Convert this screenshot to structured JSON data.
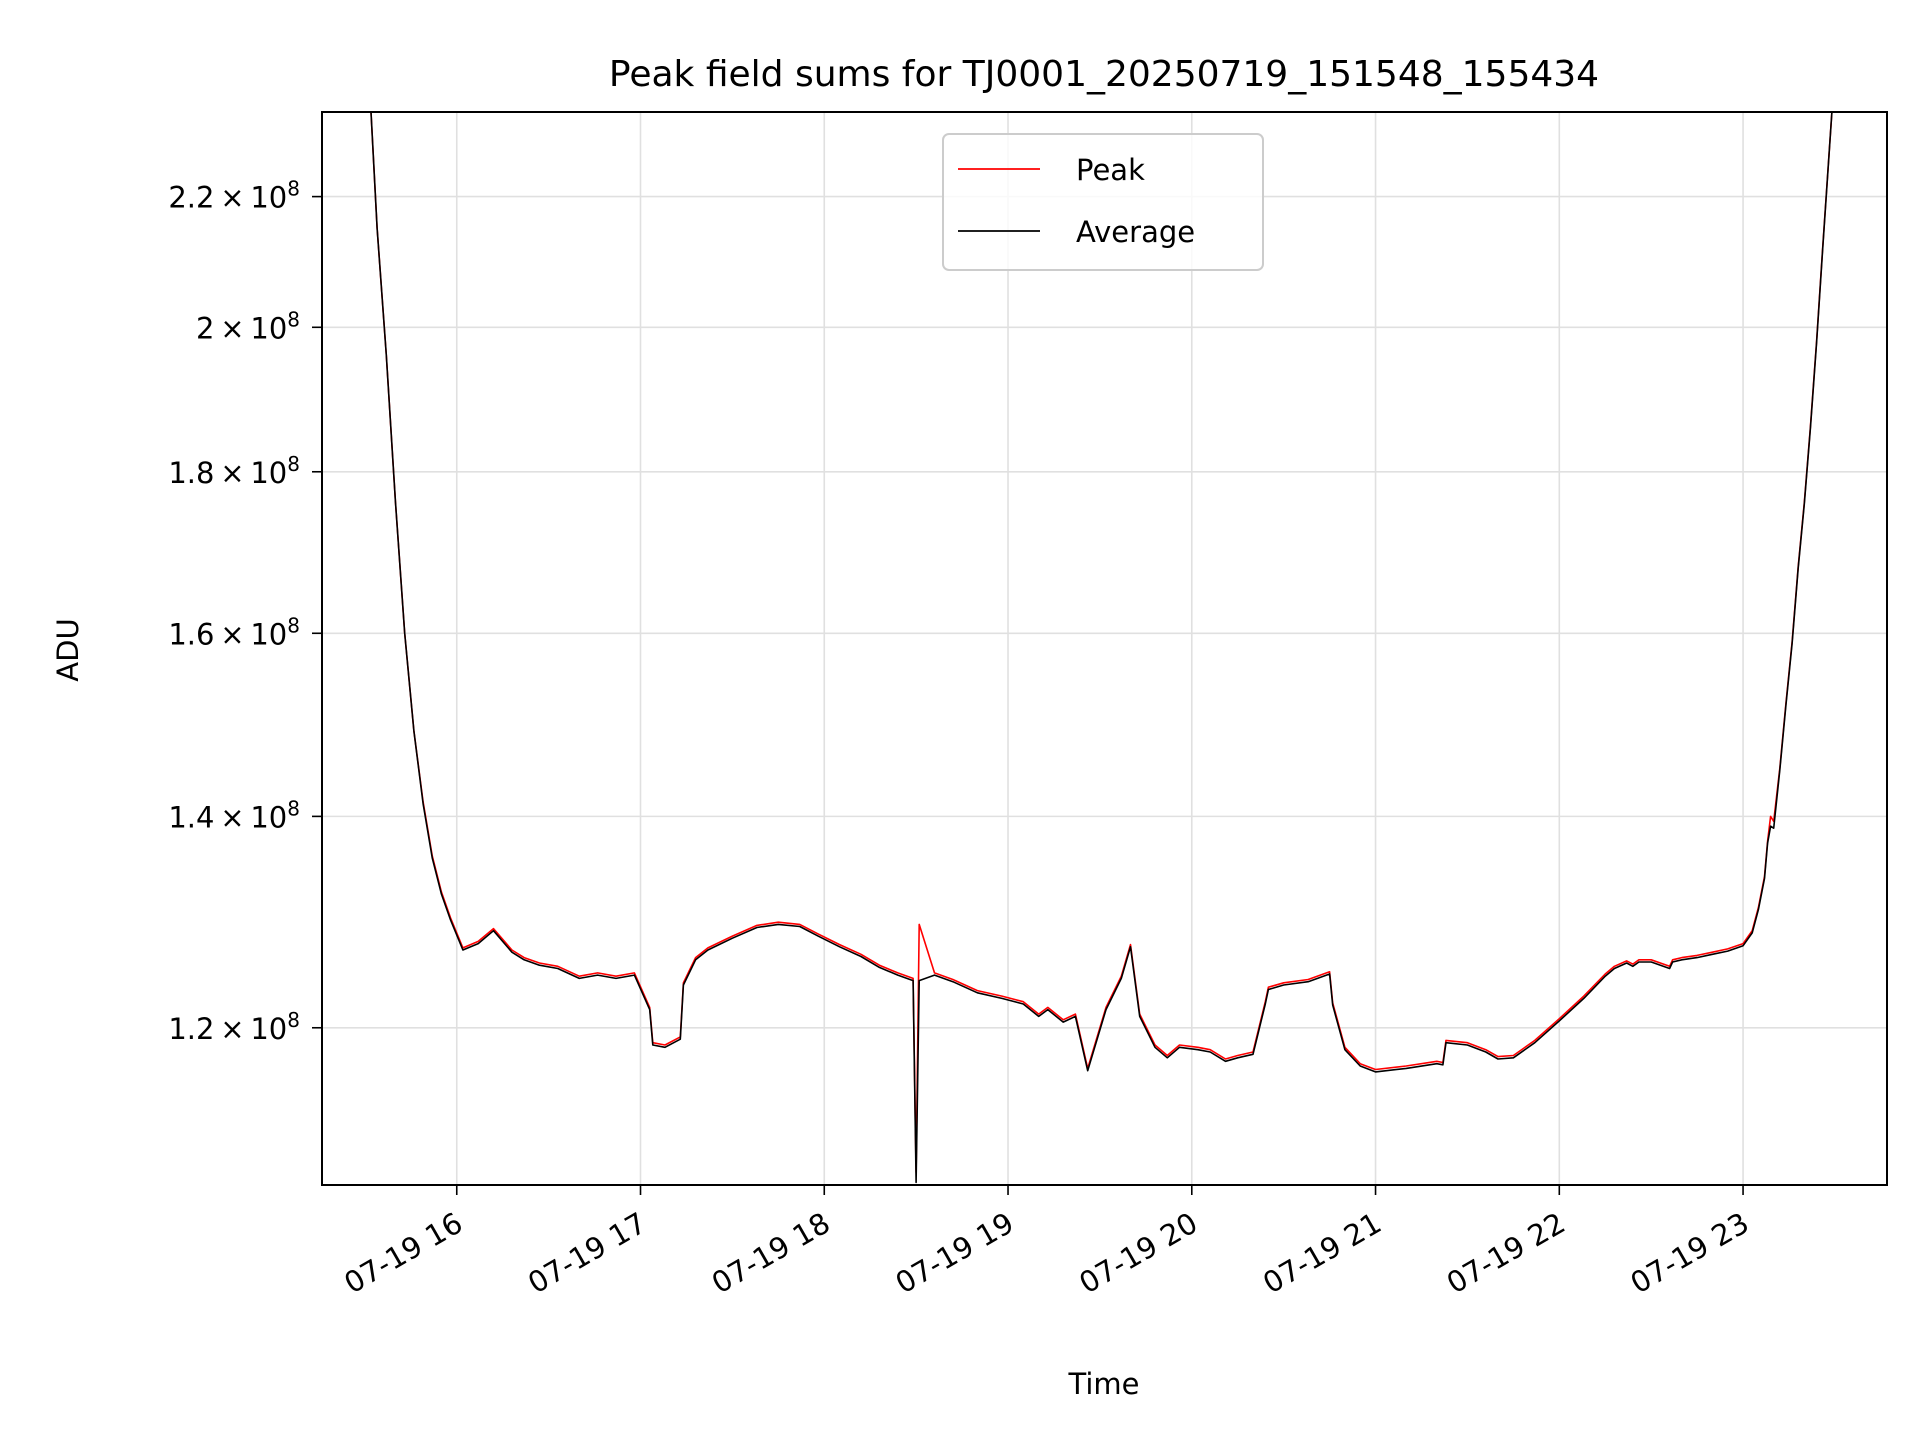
{
  "chart_data": {
    "type": "line",
    "title": "Peak field sums for TJ0001_20250719_151548_155434",
    "xlabel": "Time",
    "ylabel": "ADU",
    "x_scale": "time",
    "y_scale": "log",
    "xlim": [
      "2025-07-19T15:16:00",
      "2025-07-19T23:47:00"
    ],
    "ylim": [
      107000000,
      234000000
    ],
    "x_ticks": [
      {
        "value": "2025-07-19T16:00:00",
        "label": "07-19 16"
      },
      {
        "value": "2025-07-19T17:00:00",
        "label": "07-19 17"
      },
      {
        "value": "2025-07-19T18:00:00",
        "label": "07-19 18"
      },
      {
        "value": "2025-07-19T19:00:00",
        "label": "07-19 19"
      },
      {
        "value": "2025-07-19T20:00:00",
        "label": "07-19 20"
      },
      {
        "value": "2025-07-19T21:00:00",
        "label": "07-19 21"
      },
      {
        "value": "2025-07-19T22:00:00",
        "label": "07-19 22"
      },
      {
        "value": "2025-07-19T23:00:00",
        "label": "07-19 23"
      }
    ],
    "y_ticks": [
      {
        "value": 120000000,
        "mantissa": "1.2",
        "base": "10",
        "exp": "8"
      },
      {
        "value": 140000000,
        "mantissa": "1.4",
        "base": "10",
        "exp": "8"
      },
      {
        "value": 160000000,
        "mantissa": "1.6",
        "base": "10",
        "exp": "8"
      },
      {
        "value": 180000000,
        "mantissa": "1.8",
        "base": "10",
        "exp": "8"
      },
      {
        "value": 200000000,
        "mantissa": "2",
        "base": "10",
        "exp": "8"
      },
      {
        "value": 220000000,
        "mantissa": "2.2",
        "base": "10",
        "exp": "8"
      }
    ],
    "grid": true,
    "legend_position": "top-center",
    "series": [
      {
        "name": "Peak",
        "color": "#ff0000"
      },
      {
        "name": "Average",
        "color": "#000000"
      }
    ],
    "x": [
      "2025-07-19T15:32:00",
      "2025-07-19T15:34:00",
      "2025-07-19T15:37:00",
      "2025-07-19T15:40:00",
      "2025-07-19T15:43:00",
      "2025-07-19T15:46:00",
      "2025-07-19T15:49:00",
      "2025-07-19T15:52:00",
      "2025-07-19T15:55:00",
      "2025-07-19T15:58:00",
      "2025-07-19T16:02:00",
      "2025-07-19T16:07:00",
      "2025-07-19T16:12:00",
      "2025-07-19T16:18:00",
      "2025-07-19T16:22:00",
      "2025-07-19T16:27:00",
      "2025-07-19T16:33:00",
      "2025-07-19T16:40:00",
      "2025-07-19T16:46:00",
      "2025-07-19T16:52:00",
      "2025-07-19T16:58:00",
      "2025-07-19T17:03:00",
      "2025-07-19T17:04:00",
      "2025-07-19T17:08:00",
      "2025-07-19T17:13:00",
      "2025-07-19T17:14:00",
      "2025-07-19T17:18:00",
      "2025-07-19T17:22:00",
      "2025-07-19T17:30:00",
      "2025-07-19T17:38:00",
      "2025-07-19T17:45:00",
      "2025-07-19T17:52:00",
      "2025-07-19T17:58:00",
      "2025-07-19T18:05:00",
      "2025-07-19T18:12:00",
      "2025-07-19T18:18:00",
      "2025-07-19T18:24:00",
      "2025-07-19T18:29:00",
      "2025-07-19T18:30:00",
      "2025-07-19T18:31:00",
      "2025-07-19T18:36:00",
      "2025-07-19T18:42:00",
      "2025-07-19T18:50:00",
      "2025-07-19T18:58:00",
      "2025-07-19T19:05:00",
      "2025-07-19T19:10:00",
      "2025-07-19T19:13:00",
      "2025-07-19T19:18:00",
      "2025-07-19T19:22:00",
      "2025-07-19T19:26:00",
      "2025-07-19T19:32:00",
      "2025-07-19T19:37:00",
      "2025-07-19T19:40:00",
      "2025-07-19T19:43:00",
      "2025-07-19T19:48:00",
      "2025-07-19T19:52:00",
      "2025-07-19T19:56:00",
      "2025-07-19T20:02:00",
      "2025-07-19T20:06:00",
      "2025-07-19T20:11:00",
      "2025-07-19T20:15:00",
      "2025-07-19T20:20:00",
      "2025-07-19T20:24:00",
      "2025-07-19T20:25:00",
      "2025-07-19T20:30:00",
      "2025-07-19T20:38:00",
      "2025-07-19T20:45:00",
      "2025-07-19T20:46:00",
      "2025-07-19T20:50:00",
      "2025-07-19T20:55:00",
      "2025-07-19T21:00:00",
      "2025-07-19T21:10:00",
      "2025-07-19T21:20:00",
      "2025-07-19T21:22:00",
      "2025-07-19T21:23:00",
      "2025-07-19T21:30:00",
      "2025-07-19T21:36:00",
      "2025-07-19T21:40:00",
      "2025-07-19T21:45:00",
      "2025-07-19T21:52:00",
      "2025-07-19T22:00:00",
      "2025-07-19T22:08:00",
      "2025-07-19T22:15:00",
      "2025-07-19T22:18:00",
      "2025-07-19T22:22:00",
      "2025-07-19T22:24:00",
      "2025-07-19T22:26:00",
      "2025-07-19T22:30:00",
      "2025-07-19T22:36:00",
      "2025-07-19T22:37:00",
      "2025-07-19T22:40:00",
      "2025-07-19T22:45:00",
      "2025-07-19T22:50:00",
      "2025-07-19T22:55:00",
      "2025-07-19T23:00:00",
      "2025-07-19T23:03:00",
      "2025-07-19T23:05:00",
      "2025-07-19T23:07:00",
      "2025-07-19T23:08:00",
      "2025-07-19T23:09:00",
      "2025-07-19T23:10:00",
      "2025-07-19T23:12:00",
      "2025-07-19T23:14:00",
      "2025-07-19T23:16:00",
      "2025-07-19T23:18:00",
      "2025-07-19T23:20:00",
      "2025-07-19T23:22:00",
      "2025-07-19T23:24:00",
      "2025-07-19T23:26:00",
      "2025-07-19T23:29:00",
      "2025-07-19T23:31:00"
    ],
    "peak_values": [
      234000000,
      215000000,
      196000000,
      176000000,
      160000000,
      149000000,
      141500000,
      136000000,
      132500000,
      130000000,
      127200000,
      127800000,
      129000000,
      127000000,
      126300000,
      125800000,
      125500000,
      124600000,
      124900000,
      124600000,
      124900000,
      121800000,
      118700000,
      118500000,
      119200000,
      124000000,
      126300000,
      127200000,
      128300000,
      129300000,
      129600000,
      129400000,
      128500000,
      127500000,
      126600000,
      125600000,
      124900000,
      124400000,
      108000000,
      129400000,
      124900000,
      124300000,
      123300000,
      122800000,
      122300000,
      121200000,
      121800000,
      120700000,
      121200000,
      116500000,
      121800000,
      124600000,
      127500000,
      121200000,
      118500000,
      117600000,
      118500000,
      118300000,
      118100000,
      117300000,
      117600000,
      117900000,
      122300000,
      123600000,
      124000000,
      124300000,
      125000000,
      122200000,
      118300000,
      116900000,
      116400000,
      116700000,
      117100000,
      117000000,
      118900000,
      118700000,
      118100000,
      117500000,
      117600000,
      118900000,
      120800000,
      122800000,
      124800000,
      125500000,
      126000000,
      125700000,
      126100000,
      126100000,
      125500000,
      126100000,
      126300000,
      126500000,
      126800000,
      127100000,
      127600000,
      128800000,
      131000000,
      134000000,
      137500000,
      140000000,
      139500000,
      145000000,
      152000000,
      159000000,
      168000000,
      176000000,
      186000000,
      198000000,
      212000000,
      234000000,
      234000000
    ],
    "average_values": [
      234000000,
      215000000,
      196000000,
      176000000,
      160000000,
      149000000,
      141300000,
      135800000,
      132300000,
      129800000,
      127000000,
      127600000,
      128800000,
      126800000,
      126100000,
      125600000,
      125300000,
      124400000,
      124700000,
      124400000,
      124700000,
      121600000,
      118500000,
      118300000,
      119000000,
      123800000,
      126100000,
      127000000,
      128100000,
      129100000,
      129400000,
      129200000,
      128300000,
      127300000,
      126400000,
      125400000,
      124700000,
      124200000,
      107200000,
      124200000,
      124700000,
      124100000,
      123100000,
      122600000,
      122100000,
      121000000,
      121600000,
      120500000,
      121000000,
      116300000,
      121600000,
      124400000,
      127300000,
      121000000,
      118300000,
      117400000,
      118300000,
      118100000,
      117900000,
      117100000,
      117400000,
      117700000,
      122100000,
      123400000,
      123800000,
      124100000,
      124800000,
      122000000,
      118100000,
      116700000,
      116200000,
      116500000,
      116900000,
      116800000,
      118700000,
      118500000,
      117900000,
      117300000,
      117400000,
      118700000,
      120600000,
      122600000,
      124600000,
      125300000,
      125800000,
      125500000,
      125900000,
      125900000,
      125300000,
      125900000,
      126100000,
      126300000,
      126600000,
      126900000,
      127400000,
      128600000,
      130800000,
      133800000,
      137300000,
      139000000,
      138800000,
      144800000,
      151800000,
      158800000,
      167800000,
      175800000,
      185800000,
      197800000,
      211800000,
      234000000,
      234000000
    ]
  }
}
